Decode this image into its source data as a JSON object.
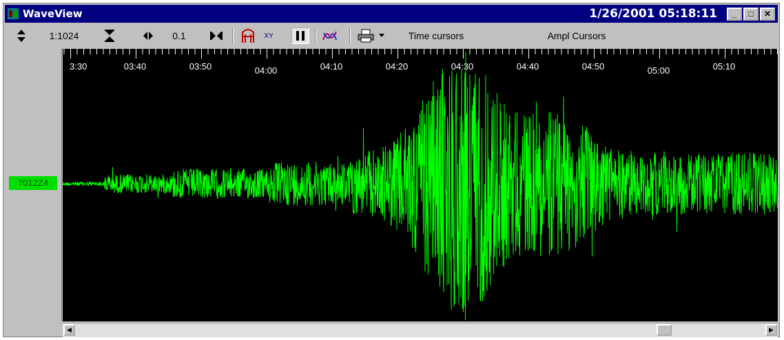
{
  "window": {
    "title": "WaveView",
    "datetime": "1/26/2001 05:18:11"
  },
  "titlebar_buttons": {
    "minimize": "_",
    "maximize": "□",
    "close": "✕"
  },
  "toolbar": {
    "amplitude_scale": "1:1024",
    "time_scale": "0.1",
    "xy_label": "XY",
    "time_cursors": "Time cursors",
    "ampl_cursors": "Ampl Cursors",
    "icons": [
      "updown-arrows-icon",
      "zoom-vertical-icon",
      "leftright-arrows-icon",
      "zoom-horizontal-icon",
      "filter-icon",
      "xy-plot-icon",
      "pause-icon",
      "spectrum-icon",
      "print-icon",
      "dropdown-arrow-icon"
    ]
  },
  "channel": {
    "label": "7012Z4"
  },
  "time_axis": {
    "ticks": [
      "3:30",
      "03:40",
      "03:50",
      "04:00",
      "04:10",
      "04:20",
      "04:30",
      "04:40",
      "04:50",
      "05:00",
      "05:10"
    ]
  },
  "colors": {
    "trace": "#00ff00",
    "background": "#000000",
    "label_bg": "#00e000",
    "titlebar": "#000080"
  },
  "scrollbar": {
    "position": 0.83
  }
}
